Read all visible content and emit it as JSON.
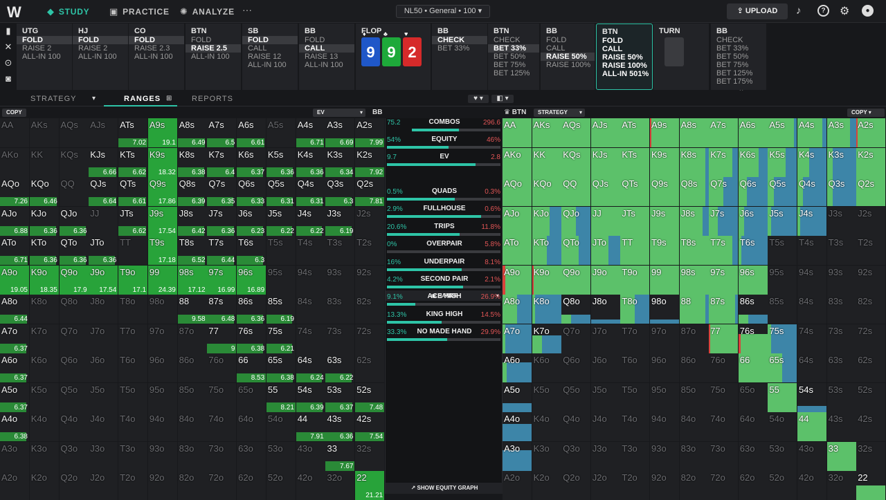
{
  "nav": {
    "logo": "W",
    "study": "STUDY",
    "practice": "PRACTICE",
    "analyze": "ANALYZE",
    "more": "···",
    "game": "NL50 • General • 100",
    "upload": "UPLOAD"
  },
  "columns": [
    {
      "title": "UTG",
      "options": [
        "FOLD",
        "RAISE 2",
        "ALL-IN 100"
      ],
      "sel": 0
    },
    {
      "title": "HJ",
      "options": [
        "FOLD",
        "RAISE 2",
        "ALL-IN 100"
      ],
      "sel": 0
    },
    {
      "title": "CO",
      "options": [
        "FOLD",
        "RAISE 2.3",
        "ALL-IN 100"
      ],
      "sel": 0
    },
    {
      "title": "BTN",
      "options": [
        "FOLD",
        "RAISE 2.5",
        "ALL-IN 100"
      ],
      "sel": 1
    },
    {
      "title": "SB",
      "options": [
        "FOLD",
        "CALL",
        "RAISE 12",
        "ALL-IN 100"
      ],
      "sel": 0
    },
    {
      "title": "BB",
      "options": [
        "FOLD",
        "CALL",
        "RAISE 13",
        "ALL-IN 100"
      ],
      "sel": 1
    },
    {
      "title": "FLOP",
      "cards": [
        {
          "rank": "9",
          "suit": "♦",
          "color": "#1f57c8"
        },
        {
          "rank": "9",
          "suit": "♣",
          "color": "#1ea93a"
        },
        {
          "rank": "2",
          "suit": "♥",
          "color": "#d62a2a"
        }
      ]
    },
    {
      "title": "BB",
      "options": [
        "CHECK",
        "BET 33%"
      ],
      "sel": 0
    },
    {
      "title": "BTN",
      "options": [
        "CHECK",
        "BET 33%",
        "BET 50%",
        "BET 75%",
        "BET 125%"
      ],
      "sel": 1
    },
    {
      "title": "BB",
      "options": [
        "FOLD",
        "CALL",
        "RAISE 50%",
        "RAISE 100%"
      ],
      "sel": 2
    },
    {
      "title": "BTN",
      "options": [
        "FOLD",
        "CALL",
        "RAISE 50%",
        "RAISE 100%",
        "ALL-IN 501%"
      ],
      "sel": -1,
      "current": true
    },
    {
      "title": "TURN",
      "turn": true
    },
    {
      "title": "BB",
      "options": [
        "CHECK",
        "BET 33%",
        "BET 50%",
        "BET 75%",
        "BET 125%",
        "BET 175%"
      ],
      "sel": -1,
      "more": "⌄"
    }
  ],
  "tabs": {
    "strategy": "STRATEGY",
    "ranges": "RANGES",
    "reports": "REPORTS"
  },
  "subbar": {
    "copy_left": "COPY",
    "ev": "EV",
    "bb": "BB",
    "btn": "BTN",
    "strategy": "STRATEGY",
    "copy_right": "COPY"
  },
  "ranks": [
    "A",
    "K",
    "Q",
    "J",
    "T",
    "9",
    "8",
    "7",
    "6",
    "5",
    "4",
    "3",
    "2"
  ],
  "ev_cells": {
    "0,4": "7.02",
    "0,5": "19.1",
    "0,6": "6.49",
    "0,7": "6.5",
    "0,8": "6.61",
    "0,10": "6.71",
    "0,11": "6.69",
    "0,12": "7.99",
    "1,3": "6.66",
    "1,4": "6.62",
    "1,5": "18.32",
    "1,6": "6.38",
    "1,7": "6.4",
    "1,8": "6.37",
    "1,9": "6.36",
    "1,10": "6.36",
    "1,11": "6.34",
    "1,12": "7.92",
    "2,0": "7.26",
    "2,1": "6.46",
    "2,3": "6.64",
    "2,4": "6.61",
    "2,5": "17.86",
    "2,6": "6.39",
    "2,7": "6.35",
    "2,8": "6.33",
    "2,9": "6.31",
    "2,10": "6.31",
    "2,11": "6.3",
    "2,12": "7.81",
    "3,0": "6.88",
    "3,1": "6.36",
    "3,2": "6.36",
    "3,4": "6.62",
    "3,5": "17.54",
    "3,6": "6.42",
    "3,7": "6.36",
    "3,8": "6.23",
    "3,9": "6.22",
    "3,10": "6.22",
    "3,11": "6.19",
    "4,0": "6.71",
    "4,1": "6.36",
    "4,2": "6.36",
    "4,3": "6.36",
    "4,5": "17.18",
    "4,6": "6.52",
    "4,7": "6.44",
    "4,8": "6.3",
    "5,0": "19.05",
    "5,1": "18.35",
    "5,2": "17.9",
    "5,3": "17.54",
    "5,4": "17.1",
    "5,5": "24.39",
    "5,6": "17.12",
    "5,7": "16.99",
    "5,8": "16.89",
    "6,0": "6.44",
    "6,6": "9.58",
    "6,7": "6.48",
    "6,8": "6.36",
    "6,9": "6.19",
    "7,0": "6.37",
    "7,7": "9",
    "7,8": "6.38",
    "7,9": "6.21",
    "8,0": "6.37",
    "8,8": "8.53",
    "8,9": "6.38",
    "8,10": "6.24",
    "8,11": "6.22",
    "9,0": "6.37",
    "9,9": "8.21",
    "9,10": "6.39",
    "9,11": "6.37",
    "9,12": "7.48",
    "10,0": "6.38",
    "10,10": "7.91",
    "10,11": "6.36",
    "10,12": "7.54",
    "11,11": "7.67",
    "12,12": "21.21"
  },
  "stats": {
    "combos": {
      "label": "COMBOS",
      "left": "75.2",
      "right": "296.6",
      "fill": 0.25
    },
    "equity": {
      "label": "EQUITY",
      "left": "54%",
      "right": "46%",
      "fill": 0.54
    },
    "ev": {
      "label": "EV",
      "left": "9.7",
      "right": "2.8",
      "fill": 0.78
    },
    "hands_header": "HANDS",
    "rows": [
      {
        "label": "QUADS",
        "left": "0.5%",
        "right": "0.3%",
        "fill": 0.6
      },
      {
        "label": "FULLHOUSE",
        "left": "2.9%",
        "right": "0.6%",
        "fill": 0.83
      },
      {
        "label": "TRIPS",
        "left": "20.6%",
        "right": "11.8%",
        "fill": 0.64
      },
      {
        "label": "OVERPAIR",
        "left": "0%",
        "right": "5.8%",
        "fill": 0.0
      },
      {
        "label": "UNDERPAIR",
        "left": "16%",
        "right": "8.1%",
        "fill": 0.66
      },
      {
        "label": "SECOND PAIR",
        "left": "4.2%",
        "right": "2.1%",
        "fill": 0.67
      },
      {
        "label": "ACE HIGH",
        "left": "9.1%",
        "right": "26.9%",
        "fill": 0.25
      },
      {
        "label": "KING HIGH",
        "left": "13.3%",
        "right": "14.5%",
        "fill": 0.48
      },
      {
        "label": "NO MADE HAND",
        "left": "33.3%",
        "right": "29.9%",
        "fill": 0.53
      }
    ],
    "equity_graph": "SHOW EQUITY GRAPH"
  },
  "strategy_cells": {
    "0,0": [
      0,
      1,
      0,
      0
    ],
    "0,1": [
      0,
      1,
      0,
      0
    ],
    "0,2": [
      0,
      1,
      0,
      0
    ],
    "0,3": [
      0,
      1,
      0,
      0
    ],
    "0,4": [
      0,
      1,
      0,
      0
    ],
    "0,5": [
      0.05,
      0.95,
      0,
      0
    ],
    "0,6": [
      0,
      1,
      0,
      0
    ],
    "0,7": [
      0,
      1,
      0,
      0
    ],
    "0,8": [
      0,
      1,
      0,
      0
    ],
    "0,9": [
      0,
      0.9,
      0.1,
      0
    ],
    "0,10": [
      0,
      0.85,
      0.15,
      0
    ],
    "0,11": [
      0,
      0.8,
      0.2,
      0
    ],
    "0,12": [
      0.05,
      0.95,
      0,
      0
    ],
    "1,0": [
      0,
      1,
      0,
      0
    ],
    "1,1": [
      0,
      1,
      0,
      0
    ],
    "1,2": [
      0,
      1,
      0,
      0
    ],
    "1,3": [
      0,
      1,
      0,
      0
    ],
    "1,4": [
      0,
      1,
      0,
      0
    ],
    "1,5": [
      0,
      1,
      0,
      0
    ],
    "1,6": [
      0,
      0.9,
      0.1,
      0
    ],
    "1,7": [
      0,
      0.8,
      0.2,
      0
    ],
    "1,8": [
      0,
      0.7,
      0.3,
      0
    ],
    "1,9": [
      0,
      0.6,
      0.4,
      0
    ],
    "1,10": [
      0,
      0.4,
      0.6,
      0
    ],
    "1,11": [
      0,
      0.2,
      0.8,
      0
    ],
    "1,12": [
      0,
      1,
      0,
      0
    ],
    "2,0": [
      0,
      1,
      0,
      0
    ],
    "2,1": [
      0,
      1,
      0,
      0
    ],
    "2,2": [
      0,
      1,
      0,
      0
    ],
    "2,3": [
      0,
      1,
      0,
      0
    ],
    "2,4": [
      0,
      1,
      0,
      0
    ],
    "2,5": [
      0,
      1,
      0,
      0
    ],
    "2,6": [
      0,
      0.9,
      0.1,
      0
    ],
    "2,7": [
      0,
      0.5,
      0.5,
      0
    ],
    "2,8": [
      0,
      0.3,
      0.7,
      0
    ],
    "2,9": [
      0,
      0.2,
      0.8,
      0
    ],
    "2,10": [
      0,
      0.2,
      0.8,
      0
    ],
    "2,11": [
      0,
      0.2,
      0.8,
      0
    ],
    "2,12": [
      0,
      1,
      0,
      0
    ],
    "3,0": [
      0,
      1,
      0,
      0
    ],
    "3,1": [
      0,
      0.6,
      0.4,
      0
    ],
    "3,2": [
      0,
      0.5,
      0.5,
      0
    ],
    "3,3": [
      0,
      1,
      0,
      0
    ],
    "3,4": [
      0,
      1,
      0,
      0
    ],
    "3,5": [
      0,
      1,
      0,
      0
    ],
    "3,6": [
      0,
      0.8,
      0.2,
      0
    ],
    "3,7": [
      0,
      0.3,
      0.7,
      0
    ],
    "3,8": [
      0,
      0.2,
      0.8,
      0
    ],
    "3,9": [
      0,
      0.1,
      0.9,
      0
    ],
    "3,10": [
      0,
      0.1,
      0.9,
      0
    ],
    "4,0": [
      0,
      1,
      0,
      0
    ],
    "4,1": [
      0,
      0.5,
      0.5,
      0
    ],
    "4,2": [
      0,
      0.6,
      0.4,
      0
    ],
    "4,3": [
      0,
      0.6,
      0.4,
      0
    ],
    "4,4": [
      0,
      1,
      0,
      0
    ],
    "4,5": [
      0,
      1,
      0,
      0
    ],
    "4,6": [
      0,
      1,
      0,
      0
    ],
    "4,7": [
      0,
      0.8,
      0.2,
      0
    ],
    "4,8": [
      0,
      0.1,
      0.9,
      0
    ],
    "5,0": [
      0.1,
      0.9,
      0,
      0
    ],
    "5,1": [
      0.05,
      0.95,
      0,
      0
    ],
    "5,2": [
      0,
      1,
      0,
      0
    ],
    "5,3": [
      0,
      1,
      0,
      0
    ],
    "5,4": [
      0,
      1,
      0,
      0
    ],
    "5,5": [
      0,
      1,
      0,
      0
    ],
    "5,6": [
      0,
      1,
      0,
      0
    ],
    "5,7": [
      0,
      1,
      0,
      0
    ],
    "5,8": [
      0,
      1,
      0,
      0
    ],
    "6,0": [
      0,
      0.5,
      0.5,
      0
    ],
    "6,1": [
      0,
      0.1,
      0.9,
      0
    ],
    "6,2": [
      0,
      0.1,
      0.2,
      0
    ],
    "6,3": [
      0,
      0,
      0.1,
      0
    ],
    "6,4": [
      0,
      0.5,
      0.5,
      0
    ],
    "6,5": [
      0,
      0,
      0.1,
      0
    ],
    "6,6": [
      0,
      0.9,
      0.1,
      0
    ],
    "6,7": [
      0,
      0.9,
      0.1,
      0
    ],
    "6,8": [
      0,
      0.1,
      0.2,
      0
    ],
    "7,0": [
      0,
      0.1,
      0.9,
      0
    ],
    "7,1": [
      0,
      0.2,
      0.4,
      0
    ],
    "7,7": [
      0.05,
      0.95,
      0,
      0
    ],
    "7,8": [
      0.05,
      0.6,
      0,
      0
    ],
    "7,9": [
      0,
      0.1,
      0.9,
      0
    ],
    "8,0": [
      0,
      0.1,
      0.6,
      0
    ],
    "8,8": [
      0,
      1,
      0,
      0
    ],
    "8,9": [
      0,
      0.5,
      0.5,
      0
    ],
    "9,0": [
      0,
      0,
      0.3,
      0
    ],
    "9,9": [
      0,
      1,
      0,
      0
    ],
    "9,10": [
      0,
      0,
      0.2,
      0
    ],
    "10,0": [
      0,
      0,
      0.6,
      0
    ],
    "10,10": [
      0,
      1,
      0,
      0
    ],
    "11,0": [
      0,
      0,
      0.7,
      0
    ],
    "11,11": [
      0,
      1,
      0,
      0
    ],
    "12,12": [
      0,
      0.5,
      0,
      0
    ]
  },
  "colors": {
    "fold": "#d9433b",
    "call": "#5cc16a",
    "raise": "#3d85a8",
    "accent": "#2ec4a7"
  }
}
